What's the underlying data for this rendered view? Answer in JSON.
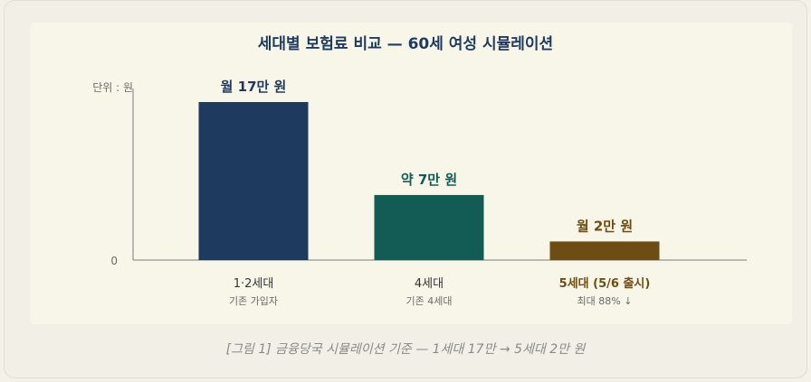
{
  "colors": {
    "title": "#1f3a5f",
    "bar_generation_1_2": "#1f3a5f",
    "bar_generation_4": "#135c55",
    "bar_generation_5": "#6e4d15",
    "axis": "#7a7a7a",
    "muted_text": "#6b6b6b"
  },
  "chart_data": {
    "type": "bar",
    "title": "세대별 보험료 비교 — 60세 여성 시뮬레이션",
    "unit_label": "단위 : 원",
    "y_zero_label": "0",
    "ylim": [
      0,
      170000
    ],
    "grid": false,
    "categories": [
      "1·2세대",
      "4세대",
      "5세대 (5/6 출시)"
    ],
    "subcategories": [
      "기존 가입자",
      "기존 4세대",
      "최대 88% ↓"
    ],
    "values": [
      170000,
      70000,
      20000
    ],
    "value_labels": [
      "월 17만 원",
      "약 7만 원",
      "월 2만 원"
    ],
    "bar_colors": [
      "#1f3a5f",
      "#135c55",
      "#6e4d15"
    ]
  },
  "caption": "[그림 1] 금융당국 시뮬레이션 기준 — 1세대 17만 → 5세대 2만 원"
}
